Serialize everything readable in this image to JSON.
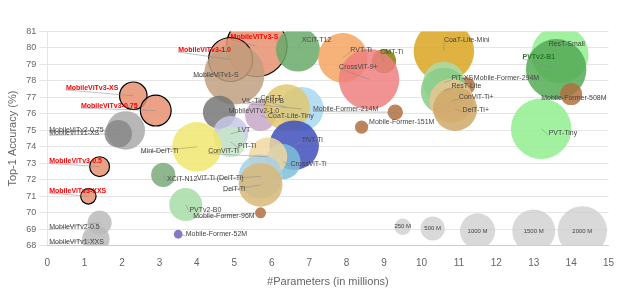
{
  "chart_data": {
    "type": "bubble",
    "xlabel": "#Parameters (in millions)",
    "ylabel": "Top-1 Accuracy (%)",
    "xlim": [
      0,
      15
    ],
    "ylim": [
      68,
      81
    ],
    "xticks": [
      0,
      1,
      2,
      3,
      4,
      5,
      6,
      7,
      8,
      9,
      10,
      11,
      12,
      13,
      14,
      15
    ],
    "yticks": [
      68,
      69,
      70,
      71,
      72,
      73,
      74,
      75,
      76,
      77,
      78,
      79,
      80,
      81
    ],
    "grid": "y",
    "legend": false,
    "labels": [
      "MobileViTv3-S",
      "MobileViTv3-1.0",
      "MobileViTv1-S",
      "MobileViTv3-XS",
      "MobileViTv3-0.75",
      "MobileViTv2-1.0",
      "CoaT-Lite-Tiny",
      "MobileViTv2-0.75",
      "MobileViTv1-XS",
      "LVT",
      "PiT-Ti",
      "Mini-DeiT-Ti",
      "MobileViTv3-0.5",
      "XCiT-N12",
      "MobileViTv3-XXS",
      "PVTv2-B0",
      "MobileViTv2-0.5",
      "MobileViTv1-XXS",
      "Mobile-Former-52M",
      "XCiT-T12",
      "RVT-Ti",
      "CMT-Ti",
      "CoaT-Lite-Mini",
      "ResT-Small",
      "CrossViT-9+",
      "PiT-XS",
      "Mobile-Former-294M",
      "PVTv2-B1",
      "Mobile-Former-508M",
      "ResT-Lite",
      "ConViT-Ti+",
      "DeiT-Ti+",
      "ViL-Tiny-RPB",
      "CeiT-T",
      "TNT-Ti",
      "Mobile-Former-151M",
      "CrossViT-Ti",
      "ConViT-Ti",
      "ViT-Ti (DeiT-Ti)",
      "DeiT-Ti",
      "Mobile-Former-96M",
      "Mobile-Former-214M",
      "PVT-Tiny"
    ],
    "x": [
      5.6,
      4.9,
      5.0,
      2.3,
      2.9,
      4.6,
      5.7,
      2.1,
      1.9,
      4.9,
      4.9,
      4.0,
      1.4,
      3.1,
      1.1,
      3.7,
      1.4,
      1.3,
      3.5,
      6.7,
      7.9,
      9.0,
      10.6,
      13.7,
      8.6,
      10.6,
      11.2,
      13.6,
      14.0,
      10.6,
      10.8,
      10.9,
      6.8,
      6.4,
      6.6,
      8.4,
      6.3,
      5.9,
      5.7,
      5.7,
      5.7,
      9.3,
      13.2
    ],
    "values": [
      80.1,
      79.3,
      78.4,
      77.1,
      76.2,
      76.1,
      75.9,
      75.0,
      74.8,
      74.8,
      74.3,
      74.0,
      72.8,
      72.3,
      71.0,
      70.5,
      69.4,
      68.4,
      68.7,
      79.9,
      79.4,
      79.2,
      79.8,
      79.6,
      78.1,
      77.9,
      77.7,
      78.7,
      77.2,
      77.4,
      76.8,
      76.3,
      76.3,
      76.4,
      74.1,
      75.2,
      73.1,
      73.4,
      72.2,
      71.7,
      70.0,
      76.1,
      75.1
    ],
    "sizes": [
      55,
      40,
      55,
      25,
      28,
      30,
      28,
      35,
      25,
      32,
      28,
      45,
      18,
      22,
      14,
      30,
      22,
      25,
      8,
      40,
      45,
      22,
      55,
      52,
      55,
      38,
      16,
      55,
      20,
      42,
      40,
      40,
      40,
      42,
      45,
      12,
      32,
      35,
      40,
      40,
      10,
      14,
      55
    ],
    "colors": [
      "#E89070",
      "#E89070",
      "#C0A080",
      "#E89070",
      "#E89070",
      "#777777",
      "#C8A8C8",
      "#aaaaaa",
      "#888888",
      "#C8C8E8",
      "#C8E8C8",
      "#F0E870",
      "#E89070",
      "#7AAA7A",
      "#E89070",
      "#A8DDA8",
      "#bbbbbb",
      "#bbbbbb",
      "#7060BB",
      "#6aaa6a",
      "#F4A460",
      "#808000",
      "#DAA520",
      "#90EE90",
      "#F08080",
      "#aaddaa",
      "#B07040",
      "#55AA55",
      "#B07040",
      "#88CC88",
      "#E8C890",
      "#D0A868",
      "#A8D8F0",
      "#E0C870",
      "#4050BB",
      "#B07040",
      "#80C0D8",
      "#F0D8A0",
      "#A8D0E8",
      "#D8B878",
      "#B07040",
      "#B07040",
      "#90EE90"
    ],
    "size_legend": {
      "labels": [
        "250 M",
        "500 M",
        "1000 M",
        "1500 M",
        "2000 M"
      ],
      "x": [
        9.5,
        10.3,
        11.5,
        13.0,
        14.3
      ],
      "values": [
        69.15,
        69.05,
        68.9,
        68.9,
        68.9
      ],
      "sizes": [
        15,
        22,
        32,
        39,
        45
      ],
      "color": "#cccccc"
    }
  }
}
